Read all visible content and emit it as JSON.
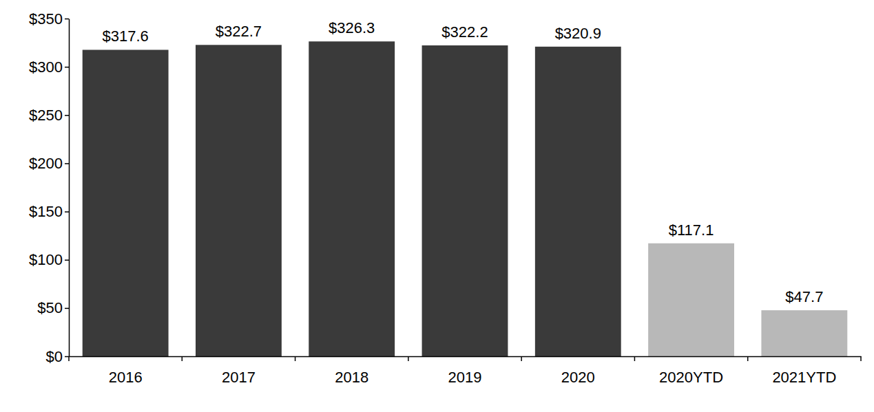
{
  "chart_data": {
    "type": "bar",
    "categories": [
      "2016",
      "2017",
      "2018",
      "2019",
      "2020",
      "2020YTD",
      "2021YTD"
    ],
    "values": [
      317.6,
      322.7,
      326.3,
      322.2,
      320.9,
      117.1,
      47.7
    ],
    "value_labels": [
      "$317.6",
      "$322.7",
      "$326.3",
      "$322.2",
      "$320.9",
      "$117.1",
      "$47.7"
    ],
    "colors": [
      "#3a3a3a",
      "#3a3a3a",
      "#3a3a3a",
      "#3a3a3a",
      "#3a3a3a",
      "#b8b8b8",
      "#b8b8b8"
    ],
    "data_labels": true,
    "grid": false,
    "ylim": [
      0,
      350
    ],
    "yticks": [
      {
        "value": 0,
        "label": "$0"
      },
      {
        "value": 50,
        "label": "$50"
      },
      {
        "value": 100,
        "label": "$100"
      },
      {
        "value": 150,
        "label": "$150"
      },
      {
        "value": 200,
        "label": "$200"
      },
      {
        "value": 250,
        "label": "$250"
      },
      {
        "value": 300,
        "label": "$300"
      },
      {
        "value": 350,
        "label": "$350"
      }
    ]
  }
}
